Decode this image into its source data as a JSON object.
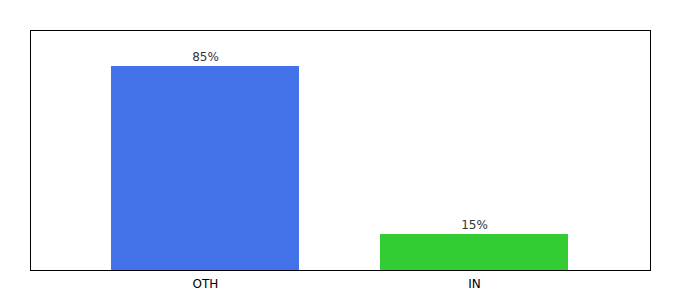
{
  "chart_data": {
    "type": "bar",
    "categories": [
      "OTH",
      "IN"
    ],
    "values": [
      85,
      15
    ],
    "value_labels": [
      "85%",
      "15%"
    ],
    "colors": [
      "#4472e8",
      "#33cc33"
    ],
    "ylim": [
      0,
      100
    ],
    "yticks": [],
    "data_labels": true,
    "tick_labels": "x"
  }
}
